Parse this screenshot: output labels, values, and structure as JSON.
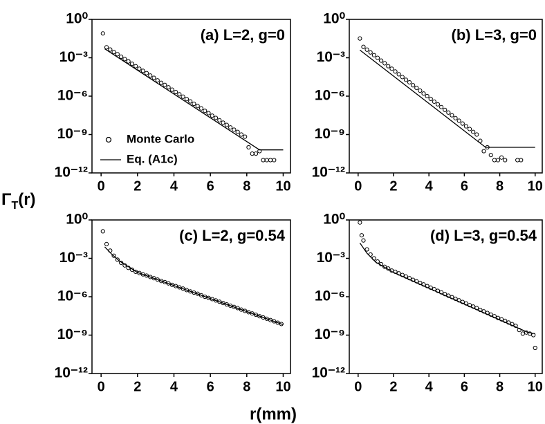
{
  "xlabel": "r(mm)",
  "ylabel": [
    "Γ",
    "T",
    "(r)"
  ],
  "chart_data": [
    {
      "type": "line",
      "title": "(a) L=2, g=0",
      "yscale": "log",
      "legend": "lower left",
      "xlim": [
        -0.5,
        10.4
      ],
      "ylim": [
        1e-12,
        1
      ],
      "xticks": [
        0,
        2,
        4,
        6,
        8,
        10
      ],
      "yticks": [
        {
          "value": 1e-12,
          "label": "10⁻¹²"
        },
        {
          "value": 1e-09,
          "label": "10⁻⁹"
        },
        {
          "value": 1e-06,
          "label": "10⁻⁶"
        },
        {
          "value": 0.001,
          "label": "10⁻³"
        },
        {
          "value": 1,
          "label": "10⁰"
        }
      ],
      "series": [
        {
          "name": "Monte Carlo",
          "style": "markers",
          "color": "#000",
          "x": [
            0.1,
            0.3,
            0.5,
            0.7,
            0.9,
            1.1,
            1.3,
            1.5,
            1.7,
            1.9,
            2.1,
            2.3,
            2.5,
            2.7,
            2.9,
            3.1,
            3.3,
            3.5,
            3.7,
            3.9,
            4.1,
            4.3,
            4.5,
            4.7,
            4.9,
            5.1,
            5.3,
            5.5,
            5.7,
            5.9,
            6.1,
            6.3,
            6.5,
            6.7,
            6.9,
            7.1,
            7.3,
            7.5,
            7.7,
            7.9,
            8.1,
            8.3,
            8.5,
            8.7,
            8.9,
            9.1,
            9.3,
            9.5
          ],
          "values": [
            0.08,
            0.0066,
            0.0044,
            0.0028,
            0.0019,
            0.0012,
            0.00079,
            0.00052,
            0.00034,
            0.00022,
            0.00014,
            9.5e-05,
            6.3e-05,
            4.1e-05,
            2.7e-05,
            1.7e-05,
            1.1e-05,
            7.6e-06,
            4.9e-06,
            3.2e-06,
            2.1e-06,
            1.4e-06,
            9.1e-07,
            5.9e-07,
            3.9e-07,
            2.5e-07,
            1.7e-07,
            1.1e-07,
            7.1e-08,
            4.7e-08,
            3e-08,
            2e-08,
            1.3e-08,
            8.5e-09,
            5.6e-09,
            3.6e-09,
            2.4e-09,
            1.6e-09,
            1e-09,
            6.8e-10,
            1e-10,
            3.2e-11,
            3.2e-11,
            5e-11,
            1e-11,
            1e-11,
            1e-11,
            1e-11
          ]
        },
        {
          "name": "Eq. (A1c)",
          "style": "line",
          "color": "#000",
          "x": [
            0.2,
            8.7,
            10
          ],
          "values": [
            0.005,
            6.3e-11,
            6.3e-11
          ]
        }
      ]
    },
    {
      "type": "line",
      "title": "(b) L=3, g=0",
      "yscale": "log",
      "xlim": [
        -0.5,
        10.4
      ],
      "ylim": [
        1e-12,
        1
      ],
      "xticks": [
        0,
        2,
        4,
        6,
        8,
        10
      ],
      "yticks": [
        {
          "value": 1e-12,
          "label": "10⁻¹²"
        },
        {
          "value": 1e-09,
          "label": "10⁻⁹"
        },
        {
          "value": 1e-06,
          "label": "10⁻⁶"
        },
        {
          "value": 0.001,
          "label": "10⁻³"
        },
        {
          "value": 1,
          "label": "10⁰"
        }
      ],
      "series": [
        {
          "name": "Monte Carlo",
          "style": "markers",
          "color": "#000",
          "x": [
            0.1,
            0.3,
            0.5,
            0.7,
            0.9,
            1.1,
            1.3,
            1.5,
            1.7,
            1.9,
            2.1,
            2.3,
            2.5,
            2.7,
            2.9,
            3.1,
            3.3,
            3.5,
            3.7,
            3.9,
            4.1,
            4.3,
            4.5,
            4.7,
            4.9,
            5.1,
            5.3,
            5.5,
            5.7,
            5.9,
            6.1,
            6.3,
            6.5,
            6.7,
            6.9,
            7.1,
            7.3,
            7.5,
            7.7,
            7.9,
            8.1,
            8.3,
            9.0,
            9.2
          ],
          "values": [
            0.032,
            0.0071,
            0.0043,
            0.0026,
            0.0016,
            0.00098,
            0.0006,
            0.00037,
            0.00022,
            0.00014,
            8.4e-05,
            5.1e-05,
            3.1e-05,
            1.9e-05,
            1.2e-05,
            7.1e-06,
            4.4e-06,
            2.7e-06,
            1.6e-06,
            1e-06,
            6.1e-07,
            3.7e-07,
            2.3e-07,
            1.4e-07,
            8.5e-08,
            5.2e-08,
            3.2e-08,
            1.9e-08,
            1.2e-08,
            7.2e-09,
            4.4e-09,
            2.7e-09,
            1.6e-09,
            1e-09,
            3.2e-10,
            5e-11,
            1e-10,
            2.5e-11,
            1e-11,
            1e-11,
            1.6e-11,
            1e-11,
            1e-11,
            1e-11
          ]
        },
        {
          "name": "Eq. (A1c)",
          "style": "line",
          "color": "#000",
          "x": [
            0.1,
            7.2,
            10
          ],
          "values": [
            0.004,
            1e-10,
            1e-10
          ]
        }
      ]
    },
    {
      "type": "line",
      "title": "(c) L=2, g=0.54",
      "yscale": "log",
      "xlim": [
        -0.5,
        10.4
      ],
      "ylim": [
        1e-12,
        1
      ],
      "xticks": [
        0,
        2,
        4,
        6,
        8,
        10
      ],
      "yticks": [
        {
          "value": 1e-12,
          "label": "10⁻¹²"
        },
        {
          "value": 1e-09,
          "label": "10⁻⁹"
        },
        {
          "value": 1e-06,
          "label": "10⁻⁶"
        },
        {
          "value": 0.001,
          "label": "10⁻³"
        },
        {
          "value": 1,
          "label": "10⁰"
        }
      ],
      "series": [
        {
          "name": "Monte Carlo",
          "style": "markers",
          "color": "#000",
          "x": [
            0.1,
            0.3,
            0.5,
            0.7,
            0.9,
            1.1,
            1.3,
            1.5,
            1.7,
            1.9,
            2.1,
            2.3,
            2.5,
            2.7,
            2.9,
            3.1,
            3.3,
            3.5,
            3.7,
            3.9,
            4.1,
            4.3,
            4.5,
            4.7,
            4.9,
            5.1,
            5.3,
            5.5,
            5.7,
            5.9,
            6.1,
            6.3,
            6.5,
            6.7,
            6.9,
            7.1,
            7.3,
            7.5,
            7.7,
            7.9,
            8.1,
            8.3,
            8.5,
            8.7,
            8.9,
            9.1,
            9.3,
            9.5,
            9.7,
            9.9
          ],
          "values": [
            0.13,
            0.013,
            0.004,
            0.0016,
            0.00079,
            0.00045,
            0.00028,
            0.00018,
            0.00013,
            8.9e-05,
            7.1e-05,
            5.6e-05,
            4.5e-05,
            3.5e-05,
            2.8e-05,
            2.2e-05,
            1.7e-05,
            1.4e-05,
            1.1e-05,
            8.5e-06,
            6.8e-06,
            5.4e-06,
            4.3e-06,
            3.3e-06,
            2.6e-06,
            2.1e-06,
            1.7e-06,
            1.3e-06,
            1e-06,
            8.1e-07,
            6.5e-07,
            5.1e-07,
            4.1e-07,
            3.2e-07,
            2.5e-07,
            2e-07,
            1.6e-07,
            1.3e-07,
            9.8e-08,
            7.8e-08,
            6.2e-08,
            4.9e-08,
            3.9e-08,
            3e-08,
            2.4e-08,
            1.9e-08,
            1.5e-08,
            1.2e-08,
            9.3e-09,
            7.4e-09
          ]
        },
        {
          "name": "Eq. (A1c)",
          "style": "line",
          "color": "#000",
          "x": [
            0.2,
            0.6,
            1.0,
            2.0,
            10
          ],
          "values": [
            0.0079,
            0.002,
            0.00063,
            7.9e-05,
            6.6e-09
          ]
        }
      ]
    },
    {
      "type": "line",
      "title": "(d) L=3, g=0.54",
      "yscale": "log",
      "xlim": [
        -0.5,
        10.4
      ],
      "ylim": [
        1e-12,
        1
      ],
      "xticks": [
        0,
        2,
        4,
        6,
        8,
        10
      ],
      "yticks": [
        {
          "value": 1e-12,
          "label": "10⁻¹²"
        },
        {
          "value": 1e-09,
          "label": "10⁻⁹"
        },
        {
          "value": 1e-06,
          "label": "10⁻⁶"
        },
        {
          "value": 0.001,
          "label": "10⁻³"
        },
        {
          "value": 1,
          "label": "10⁰"
        }
      ],
      "series": [
        {
          "name": "Monte Carlo",
          "style": "markers",
          "color": "#000",
          "x": [
            0.1,
            0.2,
            0.3,
            0.5,
            0.7,
            0.9,
            1.1,
            1.3,
            1.5,
            1.7,
            1.9,
            2.1,
            2.3,
            2.5,
            2.7,
            2.9,
            3.1,
            3.3,
            3.5,
            3.7,
            3.9,
            4.1,
            4.3,
            4.5,
            4.7,
            4.9,
            5.1,
            5.3,
            5.5,
            5.7,
            5.9,
            6.1,
            6.3,
            6.5,
            6.7,
            6.9,
            7.1,
            7.3,
            7.5,
            7.7,
            7.9,
            8.1,
            8.3,
            8.5,
            8.7,
            8.9,
            9.1,
            9.3,
            9.5,
            9.7,
            9.9,
            10.0
          ],
          "values": [
            0.63,
            0.063,
            0.025,
            0.005,
            0.002,
            0.001,
            0.00056,
            0.00035,
            0.00022,
            0.00016,
            0.00011,
            8.9e-05,
            6.7e-05,
            5e-05,
            3.8e-05,
            2.8e-05,
            2.1e-05,
            1.6e-05,
            1.2e-05,
            9.1e-06,
            6.8e-06,
            5.1e-06,
            3.9e-06,
            2.9e-06,
            2.2e-06,
            1.6e-06,
            1.2e-06,
            9.3e-07,
            6.9e-07,
            5.2e-07,
            3.9e-07,
            3e-07,
            2.2e-07,
            1.7e-07,
            1.3e-07,
            9.3e-08,
            7.1e-08,
            5.4e-08,
            4e-08,
            3e-08,
            2.2e-08,
            1.7e-08,
            1.3e-08,
            9.6e-09,
            7.2e-09,
            5.4e-09,
            2.5e-09,
            1.3e-09,
            1.6e-09,
            1.3e-09,
            1e-09,
            1e-10
          ]
        },
        {
          "name": "Eq. (A1c)",
          "style": "line",
          "color": "#000",
          "x": [
            0.1,
            0.5,
            1.0,
            2.0,
            9.6,
            10
          ],
          "values": [
            0.016,
            0.0025,
            0.0005,
            7.9e-05,
            1.6e-09,
            1.3e-09
          ]
        }
      ]
    }
  ]
}
